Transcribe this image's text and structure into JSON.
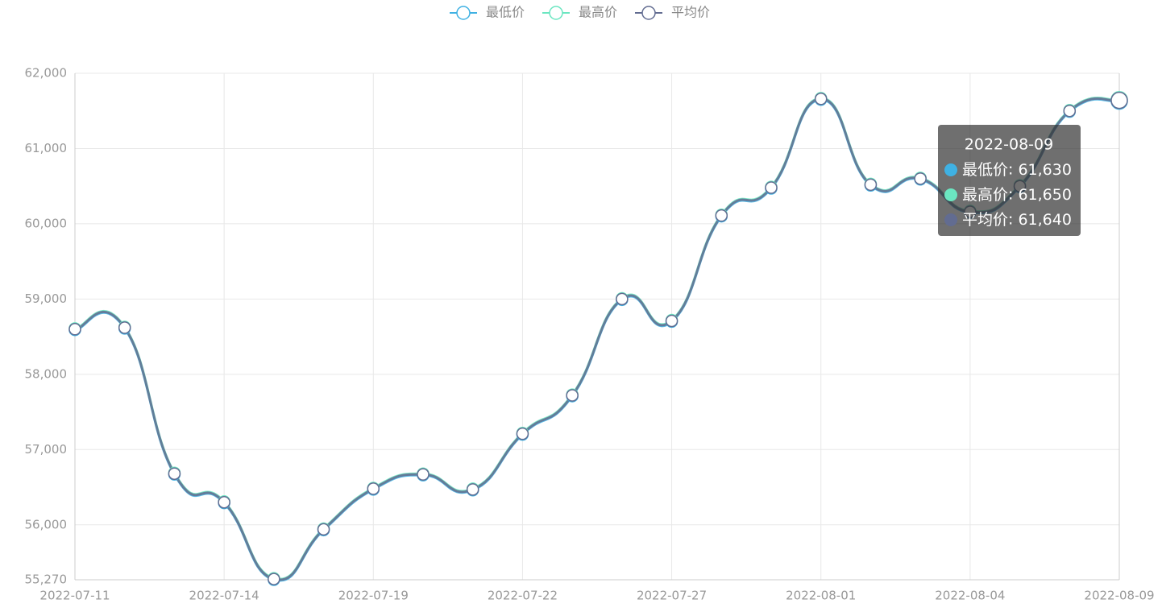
{
  "chart_data": {
    "type": "line",
    "categories": [
      "2022-07-11",
      null,
      null,
      "2022-07-14",
      null,
      null,
      "2022-07-19",
      null,
      null,
      "2022-07-22",
      null,
      null,
      "2022-07-27",
      null,
      null,
      "2022-08-01",
      null,
      null,
      "2022-08-04",
      null,
      null,
      "2022-08-09"
    ],
    "series": [
      {
        "name": "最低价",
        "color": "#3fb1e3",
        "values": [
          58590,
          58610,
          56670,
          56290,
          55270,
          55930,
          56470,
          56660,
          56460,
          57200,
          57710,
          58990,
          58700,
          60100,
          60470,
          61650,
          60510,
          60590,
          60150,
          60490,
          61490,
          61630
        ],
        "value_labels": [
          null,
          null,
          null,
          null,
          null,
          null,
          null,
          null,
          null,
          null,
          null,
          null,
          null,
          null,
          null,
          null,
          null,
          null,
          null,
          null,
          null,
          "61,630"
        ]
      },
      {
        "name": "最高价",
        "color": "#6be6c1",
        "values": [
          58610,
          58630,
          56690,
          56310,
          55290,
          55950,
          56490,
          56680,
          56480,
          57220,
          57730,
          59010,
          58720,
          60120,
          60490,
          61670,
          60530,
          60610,
          60170,
          60510,
          61510,
          61650
        ],
        "value_labels": [
          null,
          null,
          null,
          null,
          null,
          null,
          null,
          null,
          null,
          null,
          null,
          null,
          null,
          null,
          null,
          null,
          null,
          null,
          null,
          null,
          null,
          "61,650"
        ]
      },
      {
        "name": "平均价",
        "color": "#626c91",
        "values": [
          58600,
          58620,
          56680,
          56300,
          55280,
          55940,
          56480,
          56670,
          56470,
          57210,
          57720,
          59000,
          58710,
          60110,
          60480,
          61660,
          60520,
          60600,
          60160,
          60500,
          61500,
          61640
        ],
        "value_labels": [
          null,
          null,
          null,
          null,
          null,
          null,
          null,
          null,
          null,
          null,
          null,
          null,
          null,
          null,
          null,
          null,
          null,
          null,
          null,
          null,
          null,
          "61,640"
        ]
      }
    ],
    "ylim": [
      55270,
      62000
    ],
    "yticks": [
      {
        "value": 55270,
        "label": "55,270"
      },
      {
        "value": 56000,
        "label": "56,000"
      },
      {
        "value": 57000,
        "label": "57,000"
      },
      {
        "value": 58000,
        "label": "58,000"
      },
      {
        "value": 59000,
        "label": "59,000"
      },
      {
        "value": 60000,
        "label": "60,000"
      },
      {
        "value": 61000,
        "label": "61,000"
      },
      {
        "value": 62000,
        "label": "62,000"
      }
    ],
    "grid": true,
    "legend": "top"
  }
}
